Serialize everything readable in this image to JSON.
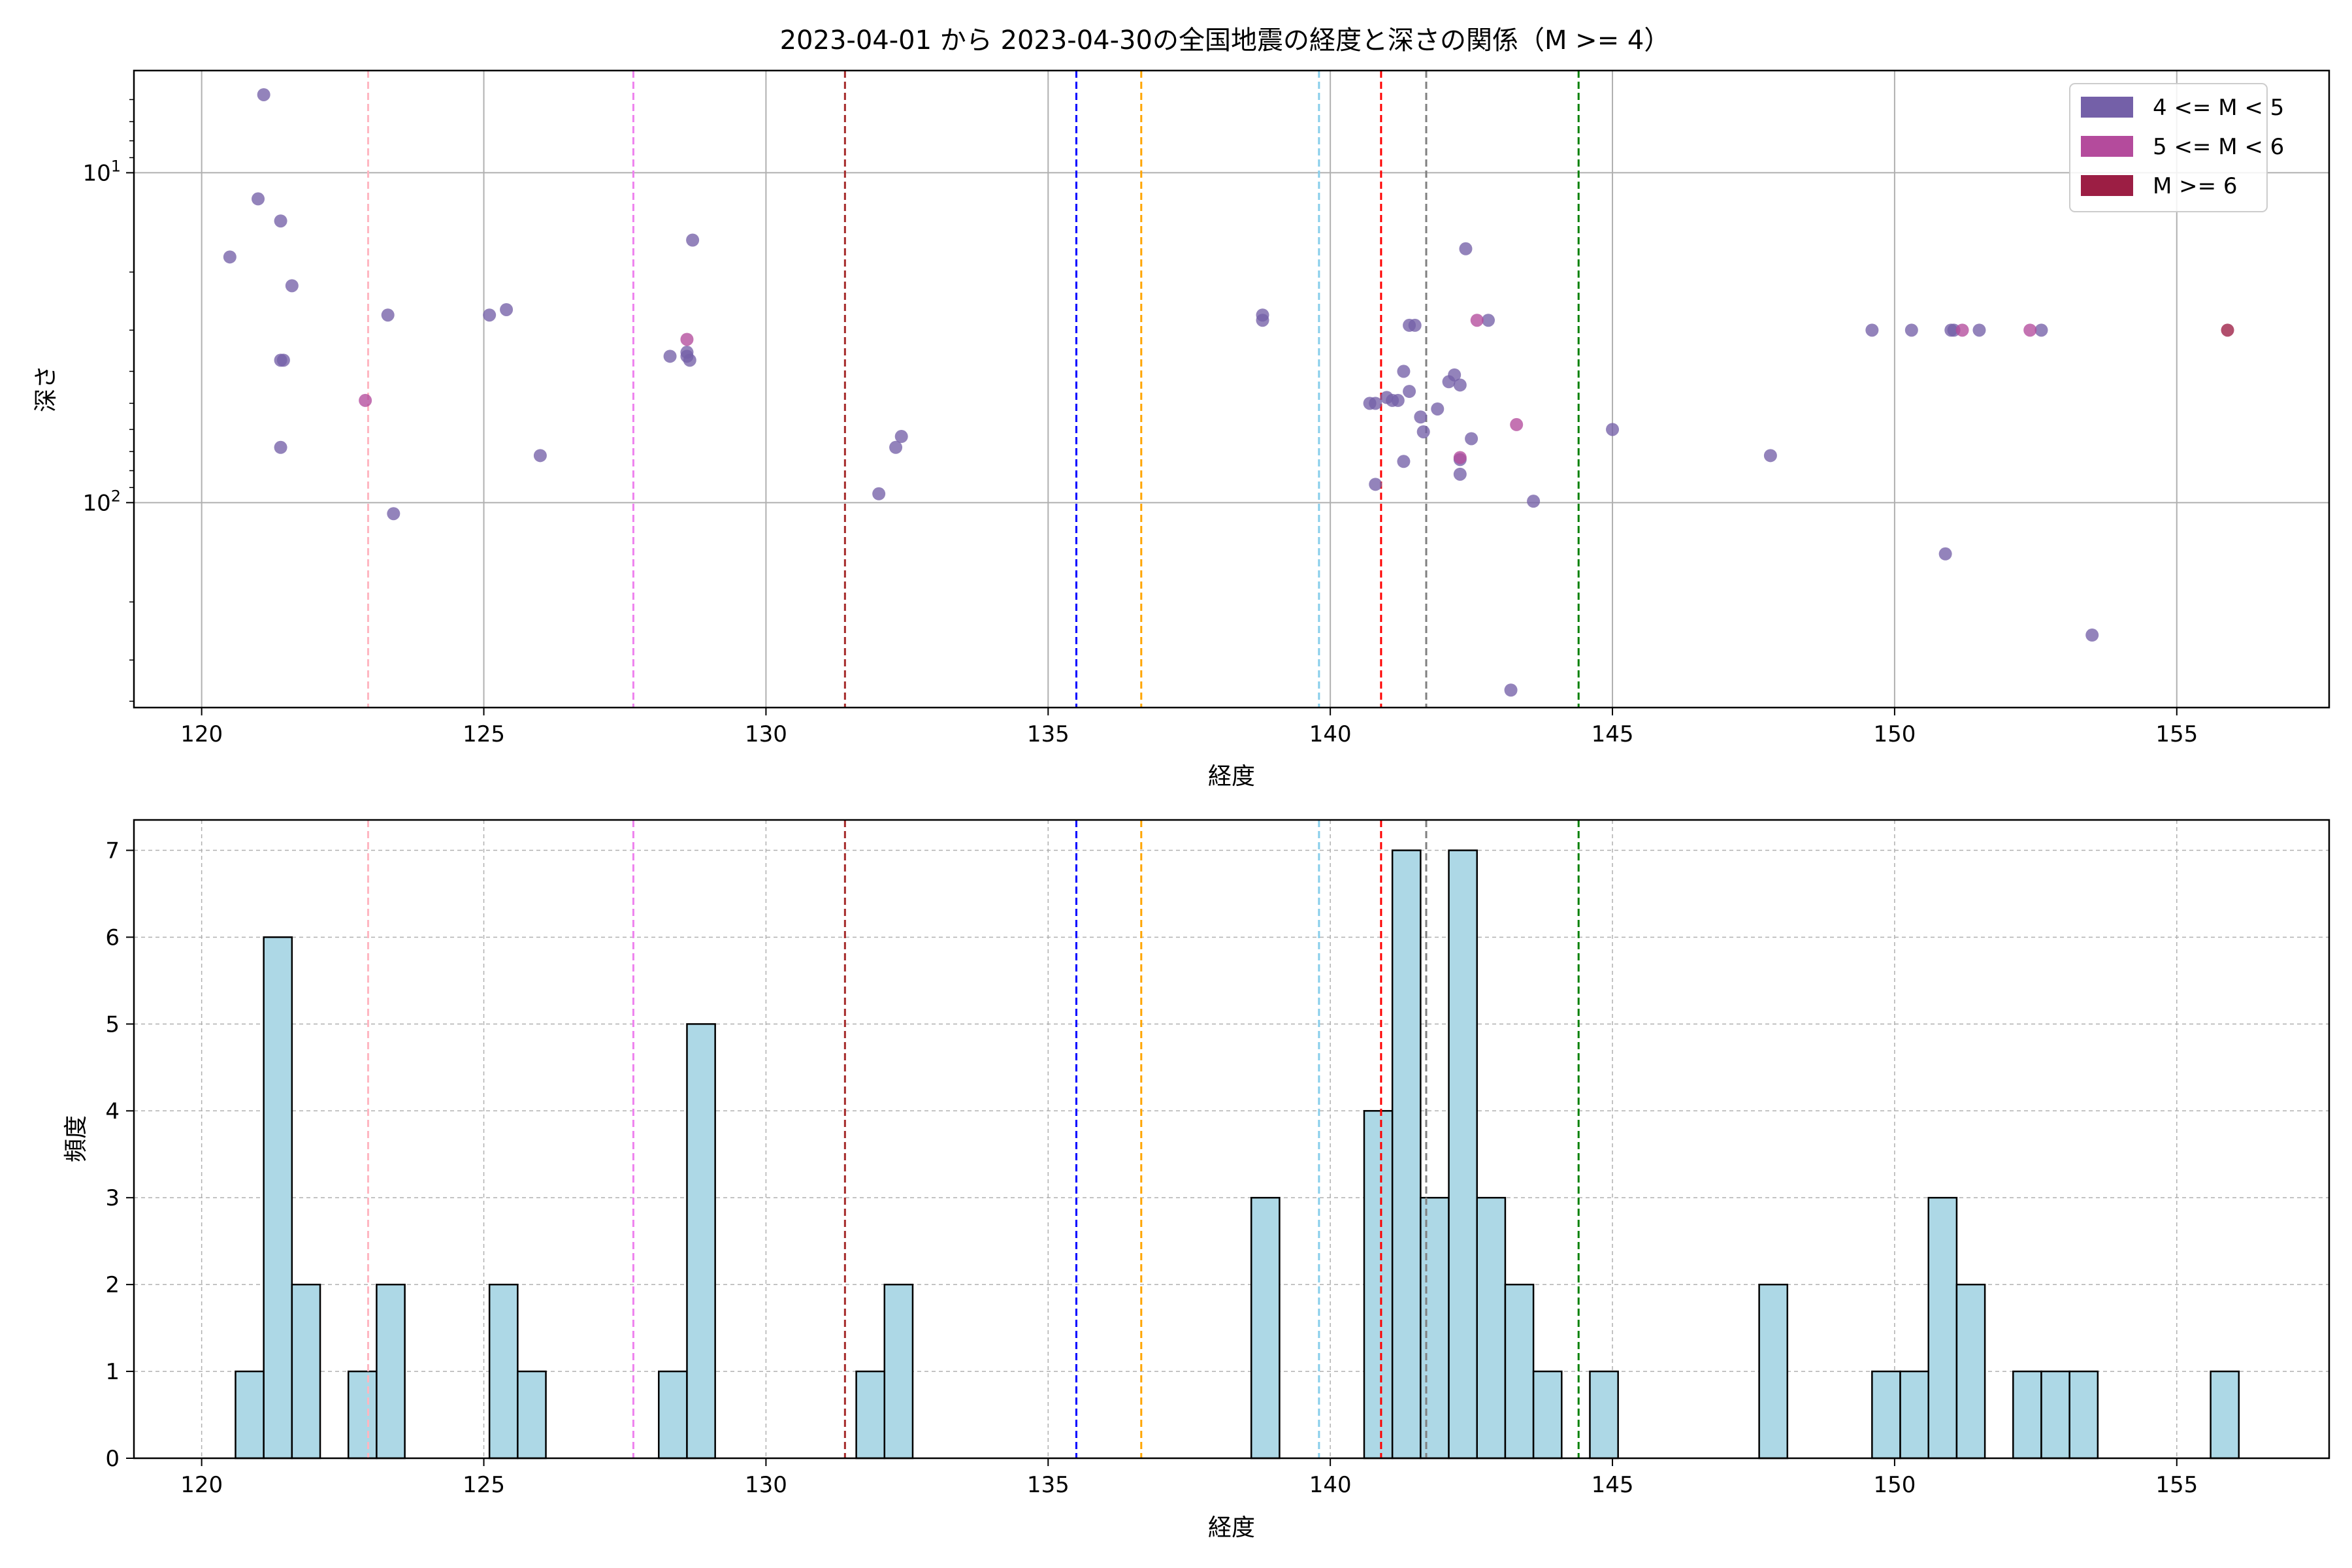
{
  "title": "2023-04-01 から 2023-04-30の全国地震の経度と深さの関係（M >= 4）",
  "chart_data": [
    {
      "type": "scatter",
      "xlabel": "経度",
      "ylabel": "深さ",
      "xlim": [
        118.8,
        157.7
      ],
      "ylim": [
        418,
        4.9
      ],
      "y_scale": "log",
      "y_inverted": true,
      "grid": true,
      "legend_position": "top-right",
      "x_ticks": [
        120,
        125,
        130,
        135,
        140,
        145,
        150,
        155
      ],
      "y_major_ticks": [
        {
          "value": 10,
          "base": "10",
          "exp": "1"
        },
        {
          "value": 100,
          "base": "10",
          "exp": "2"
        }
      ],
      "y_minor_ticks": [
        6,
        7,
        8,
        9,
        20,
        30,
        40,
        50,
        60,
        70,
        80,
        90,
        200,
        300,
        400
      ],
      "legend": [
        {
          "label": "4 <= M < 5",
          "color": "#7460a8"
        },
        {
          "label": "5 <= M < 6",
          "color": "#b44b9c"
        },
        {
          "label": "M >= 6",
          "color": "#9c1e44"
        }
      ],
      "series": [
        {
          "color": "#7460a8",
          "points": [
            [
              121.1,
              5.8
            ],
            [
              121.0,
              12
            ],
            [
              121.4,
              14
            ],
            [
              121.6,
              22
            ],
            [
              120.5,
              18
            ],
            [
              121.4,
              37
            ],
            [
              121.45,
              37
            ],
            [
              121.4,
              68
            ],
            [
              123.3,
              27
            ],
            [
              123.4,
              108
            ],
            [
              125.1,
              27
            ],
            [
              125.4,
              26
            ],
            [
              126.0,
              72
            ],
            [
              128.3,
              36
            ],
            [
              128.6,
              36
            ],
            [
              128.6,
              35
            ],
            [
              128.65,
              37
            ],
            [
              128.7,
              16
            ],
            [
              132.0,
              94
            ],
            [
              132.3,
              68
            ],
            [
              132.4,
              63
            ],
            [
              138.8,
              27
            ],
            [
              138.8,
              28
            ],
            [
              140.7,
              50
            ],
            [
              140.8,
              50
            ],
            [
              141.0,
              48
            ],
            [
              141.1,
              49
            ],
            [
              141.2,
              49
            ],
            [
              141.3,
              40
            ],
            [
              141.3,
              75
            ],
            [
              141.4,
              29
            ],
            [
              141.4,
              46
            ],
            [
              141.5,
              29
            ],
            [
              140.8,
              88
            ],
            [
              141.6,
              55
            ],
            [
              141.65,
              61
            ],
            [
              141.9,
              52
            ],
            [
              142.1,
              43
            ],
            [
              142.2,
              41
            ],
            [
              142.3,
              44
            ],
            [
              142.4,
              17
            ],
            [
              142.3,
              74
            ],
            [
              142.3,
              82
            ],
            [
              142.5,
              64
            ],
            [
              142.8,
              28
            ],
            [
              143.2,
              370
            ],
            [
              143.6,
              99
            ],
            [
              145.0,
              60
            ],
            [
              147.8,
              72
            ],
            [
              149.6,
              30
            ],
            [
              150.3,
              30
            ],
            [
              151.0,
              30
            ],
            [
              151.05,
              30
            ],
            [
              151.5,
              30
            ],
            [
              152.6,
              30
            ],
            [
              150.9,
              143
            ],
            [
              153.5,
              252
            ]
          ]
        },
        {
          "color": "#b44b9c",
          "points": [
            [
              122.9,
              49
            ],
            [
              128.6,
              32
            ],
            [
              142.6,
              28
            ],
            [
              143.3,
              58
            ],
            [
              142.3,
              73
            ],
            [
              151.2,
              30
            ],
            [
              152.4,
              30
            ]
          ]
        },
        {
          "color": "#9c1e44",
          "points": [
            [
              155.9,
              30
            ]
          ]
        }
      ],
      "vlines": [
        {
          "x": 122.95,
          "color": "#ffb6c1"
        },
        {
          "x": 127.65,
          "color": "#ee82ee"
        },
        {
          "x": 131.4,
          "color": "#a52a2a"
        },
        {
          "x": 135.5,
          "color": "#0000ff"
        },
        {
          "x": 136.65,
          "color": "#ffa500"
        },
        {
          "x": 139.8,
          "color": "#87ceeb"
        },
        {
          "x": 140.9,
          "color": "#ff0000"
        },
        {
          "x": 141.7,
          "color": "#808080"
        },
        {
          "x": 144.4,
          "color": "#008000"
        }
      ]
    },
    {
      "type": "bar",
      "xlabel": "経度",
      "ylabel": "頻度",
      "xlim": [
        118.8,
        157.7
      ],
      "ylim": [
        0,
        7.35
      ],
      "grid": true,
      "bar_color": "#add8e6",
      "bin_width": 0.5,
      "x_ticks": [
        120,
        125,
        130,
        135,
        140,
        145,
        150,
        155
      ],
      "y_ticks": [
        0,
        1,
        2,
        3,
        4,
        5,
        6,
        7
      ],
      "bins": [
        [
          120.6,
          1
        ],
        [
          121.1,
          6
        ],
        [
          121.6,
          2
        ],
        [
          122.6,
          1
        ],
        [
          123.1,
          2
        ],
        [
          125.1,
          2
        ],
        [
          125.6,
          1
        ],
        [
          128.1,
          1
        ],
        [
          128.6,
          5
        ],
        [
          131.6,
          1
        ],
        [
          132.1,
          2
        ],
        [
          138.6,
          3
        ],
        [
          140.6,
          4
        ],
        [
          141.1,
          7
        ],
        [
          141.6,
          3
        ],
        [
          142.1,
          7
        ],
        [
          142.6,
          3
        ],
        [
          143.1,
          2
        ],
        [
          143.6,
          1
        ],
        [
          144.6,
          1
        ],
        [
          147.6,
          2
        ],
        [
          149.6,
          1
        ],
        [
          150.1,
          1
        ],
        [
          150.6,
          3
        ],
        [
          151.1,
          2
        ],
        [
          152.1,
          1
        ],
        [
          152.6,
          1
        ],
        [
          153.1,
          1
        ],
        [
          155.6,
          1
        ]
      ],
      "vlines": [
        {
          "x": 122.95,
          "color": "#ffb6c1"
        },
        {
          "x": 127.65,
          "color": "#ee82ee"
        },
        {
          "x": 131.4,
          "color": "#a52a2a"
        },
        {
          "x": 135.5,
          "color": "#0000ff"
        },
        {
          "x": 136.65,
          "color": "#ffa500"
        },
        {
          "x": 139.8,
          "color": "#87ceeb"
        },
        {
          "x": 140.9,
          "color": "#ff0000"
        },
        {
          "x": 141.7,
          "color": "#808080"
        },
        {
          "x": 144.4,
          "color": "#008000"
        }
      ]
    }
  ]
}
